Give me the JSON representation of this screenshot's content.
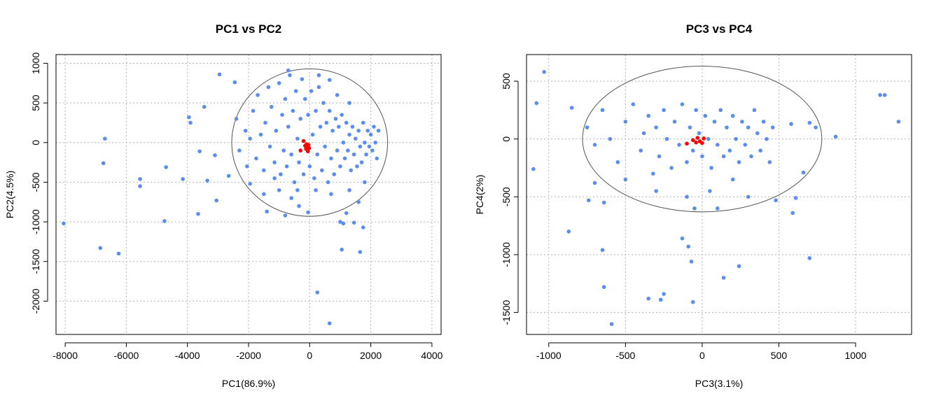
{
  "colors": {
    "points": "#5b8def",
    "highlight": "#ff0000",
    "grid": "#b3b3b3",
    "ellipse": "#555555",
    "frame": "#000000"
  },
  "chart_data": [
    {
      "type": "scatter",
      "title": "PC1 vs PC2",
      "xlabel": "PC1(86.9%)",
      "ylabel": "PC2(4.5%)",
      "xlim": [
        -8300,
        4300
      ],
      "ylim": [
        -2420,
        1110
      ],
      "xticks": [
        -8000,
        -6000,
        -4000,
        -2000,
        0,
        2000,
        4000
      ],
      "yticks": [
        -2000,
        -1500,
        -1000,
        -500,
        0,
        500,
        1000
      ],
      "grid": true,
      "ellipse": {
        "cx": 0,
        "cy": 0,
        "rx": 2550,
        "ry": 930
      },
      "series": [
        {
          "color": "#5b8def",
          "points": [
            [
              -8050,
              -1020
            ],
            [
              -6850,
              -1330
            ],
            [
              -6250,
              -1400
            ],
            [
              -6700,
              50
            ],
            [
              -6750,
              -260
            ],
            [
              -5550,
              -460
            ],
            [
              -5550,
              -550
            ],
            [
              -4700,
              -310
            ],
            [
              -4750,
              -990
            ],
            [
              -4150,
              -460
            ],
            [
              -3950,
              320
            ],
            [
              -3900,
              250
            ],
            [
              -3650,
              -900
            ],
            [
              -3600,
              -110
            ],
            [
              -3450,
              450
            ],
            [
              -3350,
              -480
            ],
            [
              -3100,
              -160
            ],
            [
              -3050,
              -730
            ],
            [
              -2950,
              860
            ],
            [
              -2650,
              -420
            ],
            [
              -2450,
              760
            ],
            [
              -1950,
              -520
            ],
            [
              -1400,
              -870
            ],
            [
              -1150,
              -450
            ],
            [
              -800,
              -920
            ],
            [
              -700,
              910
            ],
            [
              -350,
              -800
            ],
            [
              -50,
              -880
            ],
            [
              650,
              790
            ],
            [
              1000,
              -1000
            ],
            [
              1100,
              -1020
            ],
            [
              1200,
              -890
            ],
            [
              1450,
              -1010
            ],
            [
              1650,
              -1380
            ],
            [
              1750,
              -1070
            ],
            [
              1050,
              -1350
            ],
            [
              250,
              -1890
            ],
            [
              650,
              -2280
            ],
            [
              -2400,
              300
            ],
            [
              -2300,
              -100
            ],
            [
              -2100,
              150
            ],
            [
              -2050,
              -300
            ],
            [
              -1950,
              50
            ],
            [
              -1850,
              400
            ],
            [
              -1750,
              -200
            ],
            [
              -1700,
              600
            ],
            [
              -1600,
              100
            ],
            [
              -1500,
              -350
            ],
            [
              -1450,
              250
            ],
            [
              -1350,
              700
            ],
            [
              -1300,
              -50
            ],
            [
              -1250,
              450
            ],
            [
              -1150,
              -250
            ],
            [
              -1100,
              150
            ],
            [
              -1000,
              750
            ],
            [
              -950,
              -400
            ],
            [
              -900,
              350
            ],
            [
              -850,
              -100
            ],
            [
              -800,
              550
            ],
            [
              -750,
              -300
            ],
            [
              -700,
              200
            ],
            [
              -650,
              850
            ],
            [
              -600,
              -150
            ],
            [
              -550,
              400
            ],
            [
              -500,
              -500
            ],
            [
              -450,
              650
            ],
            [
              -400,
              50
            ],
            [
              -350,
              -250
            ],
            [
              -300,
              300
            ],
            [
              -250,
              800
            ],
            [
              -200,
              -400
            ],
            [
              -150,
              550
            ],
            [
              -100,
              -50
            ],
            [
              -50,
              350
            ],
            [
              0,
              -300
            ],
            [
              50,
              650
            ],
            [
              100,
              100
            ],
            [
              150,
              -450
            ],
            [
              200,
              400
            ],
            [
              250,
              -150
            ],
            [
              300,
              700
            ],
            [
              350,
              200
            ],
            [
              400,
              -350
            ],
            [
              450,
              500
            ],
            [
              500,
              -50
            ],
            [
              550,
              250
            ],
            [
              600,
              -500
            ],
            [
              650,
              400
            ],
            [
              700,
              -200
            ],
            [
              750,
              150
            ],
            [
              800,
              -400
            ],
            [
              850,
              300
            ],
            [
              900,
              -100
            ],
            [
              950,
              200
            ],
            [
              1000,
              -300
            ],
            [
              1050,
              350
            ],
            [
              1100,
              0
            ],
            [
              1150,
              -200
            ],
            [
              1200,
              250
            ],
            [
              1250,
              -100
            ],
            [
              1300,
              100
            ],
            [
              1350,
              -350
            ],
            [
              1400,
              200
            ],
            [
              1450,
              -150
            ],
            [
              1500,
              50
            ],
            [
              1550,
              -300
            ],
            [
              1600,
              150
            ],
            [
              1650,
              -50
            ],
            [
              1700,
              -250
            ],
            [
              1750,
              250
            ],
            [
              1800,
              0
            ],
            [
              1850,
              -150
            ],
            [
              1900,
              150
            ],
            [
              1950,
              -50
            ],
            [
              2000,
              100
            ],
            [
              2050,
              -100
            ],
            [
              2100,
              200
            ],
            [
              2150,
              0
            ],
            [
              2200,
              -200
            ],
            [
              2250,
              150
            ],
            [
              -1000,
              -600
            ],
            [
              -400,
              -600
            ],
            [
              200,
              -600
            ],
            [
              700,
              -650
            ],
            [
              1300,
              -600
            ],
            [
              1800,
              -500
            ],
            [
              -600,
              -700
            ],
            [
              1600,
              -750
            ],
            [
              900,
              600
            ],
            [
              1300,
              500
            ],
            [
              -1500,
              -650
            ],
            [
              300,
              850
            ]
          ]
        },
        {
          "color": "#ff0000",
          "points": [
            [
              -300,
              -100
            ],
            [
              -200,
              20
            ],
            [
              -150,
              -40
            ],
            [
              -120,
              -80
            ],
            [
              -100,
              -20
            ],
            [
              -80,
              -60
            ],
            [
              -60,
              -110
            ],
            [
              -40,
              -30
            ],
            [
              -20,
              -70
            ]
          ]
        }
      ]
    },
    {
      "type": "scatter",
      "title": "PC3 vs PC4",
      "xlabel": "PC3(3.1%)",
      "ylabel": "PC4(2%)",
      "xlim": [
        -1145,
        1365
      ],
      "ylim": [
        -1690,
        730
      ],
      "xticks": [
        -1000,
        -500,
        0,
        500,
        1000
      ],
      "yticks": [
        -1500,
        -1000,
        -500,
        0,
        500
      ],
      "grid": true,
      "ellipse": {
        "cx": 0,
        "cy": 0,
        "rx": 780,
        "ry": 630
      },
      "series": [
        {
          "color": "#5b8def",
          "points": [
            [
              -1030,
              580
            ],
            [
              -1080,
              310
            ],
            [
              -1100,
              -260
            ],
            [
              -870,
              -800
            ],
            [
              -850,
              270
            ],
            [
              -740,
              -530
            ],
            [
              -700,
              -380
            ],
            [
              -650,
              -960
            ],
            [
              -640,
              -550
            ],
            [
              -640,
              -1280
            ],
            [
              -590,
              -1600
            ],
            [
              -350,
              -1380
            ],
            [
              -270,
              -1390
            ],
            [
              -250,
              -1340
            ],
            [
              -130,
              -860
            ],
            [
              -90,
              -930
            ],
            [
              -70,
              -1060
            ],
            [
              -60,
              -1410
            ],
            [
              140,
              -1200
            ],
            [
              240,
              -1100
            ],
            [
              700,
              -1030
            ],
            [
              590,
              -640
            ],
            [
              480,
              -530
            ],
            [
              610,
              -510
            ],
            [
              660,
              -290
            ],
            [
              700,
              140
            ],
            [
              740,
              100
            ],
            [
              870,
              20
            ],
            [
              1160,
              380
            ],
            [
              1190,
              380
            ],
            [
              1280,
              150
            ],
            [
              580,
              130
            ],
            [
              -750,
              100
            ],
            [
              -700,
              -50
            ],
            [
              -650,
              250
            ],
            [
              -600,
              0
            ],
            [
              -550,
              -200
            ],
            [
              -500,
              150
            ],
            [
              -450,
              300
            ],
            [
              -400,
              -100
            ],
            [
              -380,
              50
            ],
            [
              -350,
              200
            ],
            [
              -320,
              -300
            ],
            [
              -300,
              100
            ],
            [
              -280,
              -150
            ],
            [
              -250,
              250
            ],
            [
              -230,
              0
            ],
            [
              -200,
              -250
            ],
            [
              -180,
              150
            ],
            [
              -150,
              -50
            ],
            [
              -130,
              300
            ],
            [
              -100,
              -200
            ],
            [
              -80,
              100
            ],
            [
              -60,
              -100
            ],
            [
              -40,
              250
            ],
            [
              -20,
              50
            ],
            [
              0,
              -150
            ],
            [
              20,
              200
            ],
            [
              40,
              0
            ],
            [
              60,
              -250
            ],
            [
              80,
              150
            ],
            [
              100,
              -50
            ],
            [
              120,
              250
            ],
            [
              140,
              -150
            ],
            [
              160,
              100
            ],
            [
              180,
              -100
            ],
            [
              200,
              200
            ],
            [
              220,
              0
            ],
            [
              240,
              -200
            ],
            [
              260,
              150
            ],
            [
              280,
              -50
            ],
            [
              300,
              100
            ],
            [
              320,
              -150
            ],
            [
              340,
              250
            ],
            [
              360,
              50
            ],
            [
              380,
              -100
            ],
            [
              400,
              150
            ],
            [
              420,
              0
            ],
            [
              440,
              -200
            ],
            [
              460,
              100
            ],
            [
              -500,
              -350
            ],
            [
              -300,
              -450
            ],
            [
              -100,
              -500
            ],
            [
              50,
              -450
            ],
            [
              200,
              -350
            ],
            [
              300,
              -500
            ],
            [
              100,
              -600
            ],
            [
              -50,
              -600
            ]
          ]
        },
        {
          "color": "#ff0000",
          "points": [
            [
              -100,
              -40
            ],
            [
              -60,
              -10
            ],
            [
              -40,
              -30
            ],
            [
              -30,
              10
            ],
            [
              -15,
              -20
            ],
            [
              0,
              -35
            ],
            [
              10,
              5
            ]
          ]
        }
      ]
    }
  ]
}
